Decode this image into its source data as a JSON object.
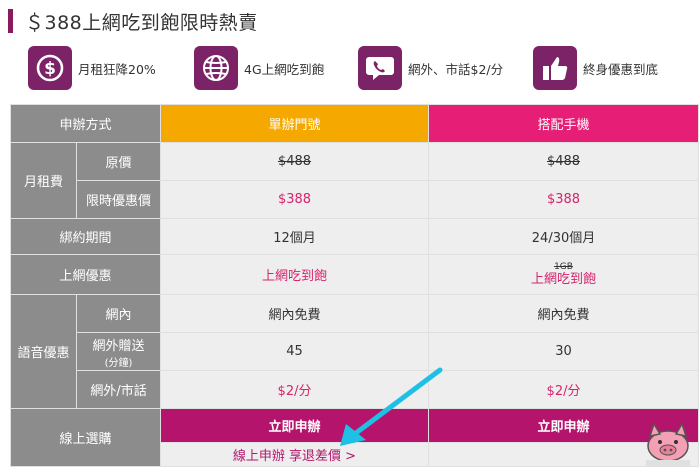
{
  "header": {
    "title": "＄388上網吃到飽限時熱賣"
  },
  "features": [
    {
      "icon": "dollar-icon",
      "label": "月租狂降20%"
    },
    {
      "icon": "globe-icon",
      "label": "4G上網吃到飽"
    },
    {
      "icon": "phone-chat-icon",
      "label": "網外、市話$2/分"
    },
    {
      "icon": "thumbs-up-icon",
      "label": "終身優惠到底"
    }
  ],
  "colors": {
    "accent": "#8b1a5c",
    "orange": "#f5a800",
    "pink": "#e61e75",
    "button": "#b5146d",
    "gray": "#8c8c8c",
    "cyan_arrow": "#1ec0e6"
  },
  "table": {
    "header": {
      "label": "申辦方式",
      "col_a": "單辦門號",
      "col_b": "搭配手機"
    },
    "monthly_fee": {
      "label": "月租費",
      "original": {
        "label": "原價",
        "a": "$488",
        "b": "$488"
      },
      "promo": {
        "label": "限時優惠價",
        "a": "$388",
        "b": "$388"
      }
    },
    "contract": {
      "label": "綁約期間",
      "a": "12個月",
      "b": "24/30個月"
    },
    "internet": {
      "label": "上網優惠",
      "a": "上網吃到飽",
      "b_strike": "1GB",
      "b": "上網吃到飽"
    },
    "voice": {
      "label": "語音優惠",
      "onnet": {
        "label": "網內",
        "a": "網內免費",
        "b": "網內免費"
      },
      "offnet_bonus": {
        "label": "網外贈送",
        "sublabel": "(分鐘)",
        "a": "45",
        "b": "30"
      },
      "offnet_rate": {
        "label": "網外/市話",
        "a": "$2/分",
        "b": "$2/分"
      }
    },
    "online": {
      "label": "線上選購",
      "button_a": "立即申辦",
      "button_b": "立即申辦",
      "note": "線上申辦 享退差價 >"
    }
  }
}
